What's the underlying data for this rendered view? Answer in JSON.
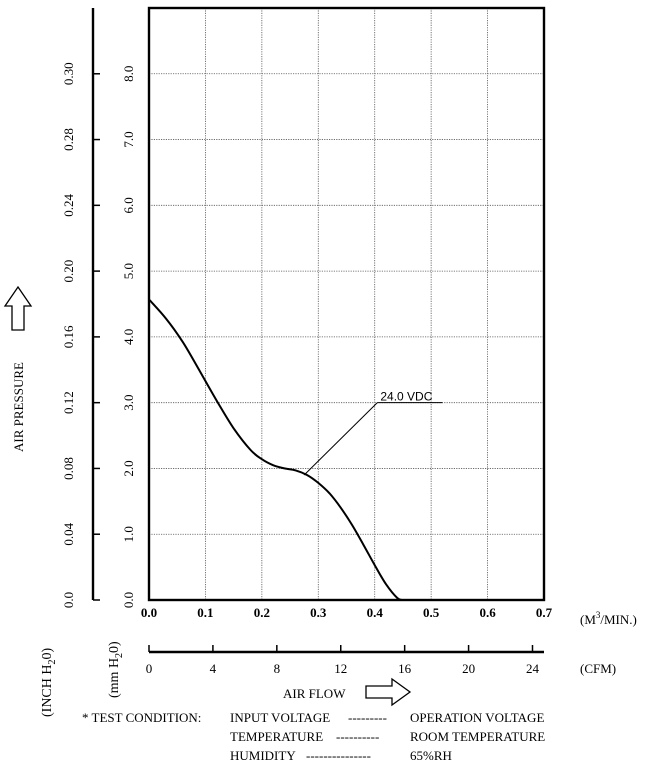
{
  "chart_data": {
    "type": "line",
    "x_unit_m3": "(M",
    "x_unit_m3_sup": "3",
    "x_unit_m3_tail": "/MIN.)",
    "x_unit_cfm": "(CFM)",
    "xlim_m3": [
      0.0,
      0.7
    ],
    "xlim_cfm": [
      0,
      24.72
    ],
    "x_ticks_m3": [
      "0.0",
      "0.1",
      "0.2",
      "0.3",
      "0.4",
      "0.5",
      "0.6",
      "0.7"
    ],
    "x_ticks_cfm": [
      "0",
      "4",
      "8",
      "12",
      "16",
      "20",
      "24"
    ],
    "x_ticks_cfm_values": [
      0,
      4,
      8,
      12,
      16,
      20,
      24
    ],
    "ylim_mm": [
      0,
      9
    ],
    "y_ticks_mm": [
      "0.0",
      "1.0",
      "2.0",
      "3.0",
      "4.0",
      "5.0",
      "6.0",
      "7.0",
      "8.0"
    ],
    "y_ticks_mm_values": [
      0,
      1,
      2,
      3,
      4,
      5,
      6,
      7,
      8
    ],
    "y_ticks_inch": [
      "0.0",
      "0.04",
      "0.08",
      "0.12",
      "0.16",
      "0.20",
      "0.24",
      "0.28",
      "0.30"
    ],
    "y_ticks_inch_mm": [
      0,
      1,
      2,
      3,
      4,
      5,
      6,
      7,
      8
    ],
    "y_unit_mm": "(mm H",
    "y_unit_mm_sub": "2",
    "y_unit_mm_tail": "0)",
    "y_unit_inch": "(INCH H",
    "y_unit_inch_sub": "2",
    "y_unit_inch_tail": "0)",
    "ylabel": "AIR PRESSURE",
    "xlabel": "AIR FLOW",
    "grid": true,
    "series": [
      {
        "name": "24.0 VDC",
        "x": [
          0.0,
          0.03,
          0.06,
          0.09,
          0.12,
          0.15,
          0.18,
          0.2,
          0.22,
          0.24,
          0.26,
          0.28,
          0.3,
          0.32,
          0.34,
          0.36,
          0.38,
          0.4,
          0.42,
          0.44,
          0.45
        ],
        "y": [
          4.57,
          4.28,
          3.92,
          3.48,
          3.03,
          2.61,
          2.28,
          2.14,
          2.05,
          2.0,
          1.97,
          1.9,
          1.78,
          1.62,
          1.4,
          1.14,
          0.84,
          0.53,
          0.24,
          0.03,
          0.0
        ]
      }
    ],
    "annotations": [
      {
        "text": "24.0 VDC",
        "anchor_x": 0.275,
        "anchor_y": 1.9,
        "label_x": 0.41,
        "label_y": 3.0
      }
    ]
  },
  "test_condition": {
    "prefix": "* TEST CONDITION:",
    "rows": [
      {
        "label": "INPUT VOLTAGE",
        "dashes": "---------",
        "value": "OPERATION VOLTAGE"
      },
      {
        "label": "TEMPERATURE",
        "dashes": "----------",
        "value": "ROOM TEMPERATURE"
      },
      {
        "label": "HUMIDITY",
        "dashes": "---------------",
        "value": "65%RH"
      }
    ]
  }
}
